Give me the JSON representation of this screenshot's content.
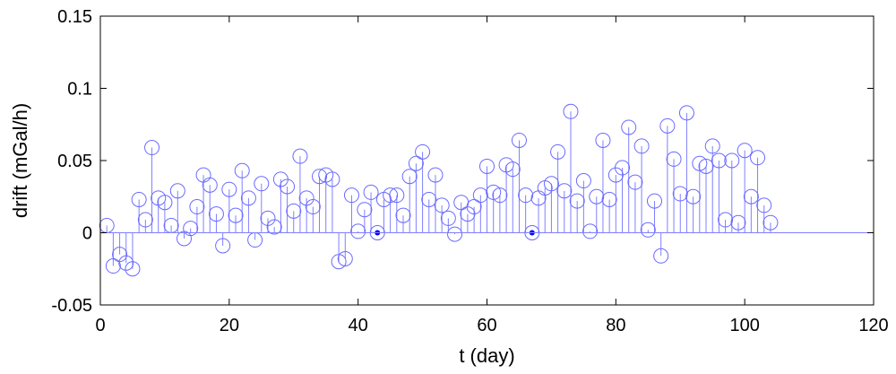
{
  "chart_data": {
    "type": "stem",
    "xlabel": "t (day)",
    "ylabel": "drift (mGal/h)",
    "xlim": [
      0,
      120
    ],
    "ylim": [
      -0.05,
      0.15
    ],
    "xticks": [
      "0",
      "20",
      "40",
      "60",
      "80",
      "100",
      "120"
    ],
    "yticks": [
      "-0.05",
      "0",
      "0.05",
      "0.1",
      "0.15"
    ],
    "grid": false,
    "colors": {
      "stem": "#8080ff",
      "marker": "#6a6aff",
      "filled": "#0000ff",
      "axis": "#000000"
    },
    "series": [
      {
        "marker": "open-circle",
        "x": [
          1,
          2,
          3,
          4,
          5,
          6,
          7,
          8,
          9,
          10,
          11,
          12,
          13,
          14,
          15,
          16,
          17,
          18,
          19,
          20,
          21,
          22,
          23,
          24,
          25,
          26,
          27,
          28,
          29,
          30,
          31,
          32,
          33,
          34,
          35,
          36,
          37,
          38,
          39,
          40,
          41,
          42,
          43,
          44,
          45,
          46,
          47,
          48,
          49,
          50,
          51,
          52,
          53,
          54,
          55,
          56,
          57,
          58,
          59,
          60,
          61,
          62,
          63,
          64,
          65,
          66,
          67,
          68,
          69,
          70,
          71,
          72,
          73,
          74,
          75,
          76,
          77,
          78,
          79,
          80,
          81,
          82,
          83,
          84,
          85,
          86,
          87,
          88,
          89,
          90,
          91,
          92,
          93,
          94,
          95,
          96,
          97,
          98,
          99,
          100,
          101,
          102,
          103,
          104
        ],
        "y": [
          0.005,
          -0.023,
          -0.015,
          -0.021,
          -0.025,
          0.023,
          0.009,
          0.059,
          0.024,
          0.021,
          0.005,
          0.029,
          -0.004,
          0.003,
          0.018,
          0.04,
          0.033,
          0.013,
          -0.009,
          0.03,
          0.012,
          0.043,
          0.024,
          -0.005,
          0.034,
          0.01,
          0.004,
          0.037,
          0.032,
          0.015,
          0.053,
          0.024,
          0.018,
          0.039,
          0.04,
          0.037,
          -0.02,
          -0.018,
          0.026,
          0.001,
          0.016,
          0.028,
          0.0,
          0.023,
          0.026,
          0.026,
          0.012,
          0.039,
          0.048,
          0.056,
          0.023,
          0.04,
          0.019,
          0.01,
          -0.001,
          0.021,
          0.013,
          0.018,
          0.026,
          0.046,
          0.028,
          0.026,
          0.047,
          0.044,
          0.064,
          0.026,
          0.0,
          0.024,
          0.031,
          0.034,
          0.056,
          0.029,
          0.084,
          0.022,
          0.036,
          0.001,
          0.025,
          0.064,
          0.023,
          0.04,
          0.045,
          0.073,
          0.035,
          0.06,
          0.002,
          0.022,
          -0.016,
          0.074,
          0.051,
          0.027,
          0.083,
          0.025,
          0.048,
          0.046,
          0.06,
          0.05,
          0.009,
          0.05,
          0.007,
          0.057,
          0.025,
          0.052,
          0.019,
          0.007
        ]
      },
      {
        "marker": "filled-dot",
        "x": [
          43,
          67
        ],
        "y": [
          0.0,
          0.0
        ]
      }
    ]
  }
}
